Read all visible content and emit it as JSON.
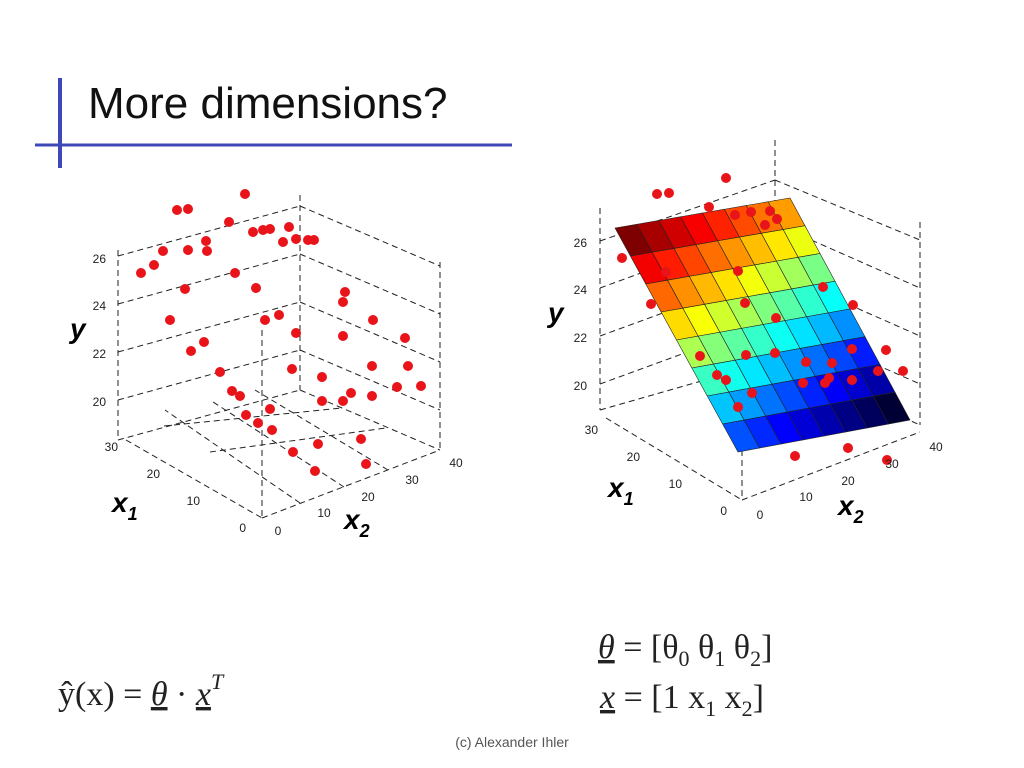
{
  "title": "More dimensions?",
  "plots": [
    {
      "yticks": [
        "20",
        "22",
        "24",
        "26"
      ],
      "x1ticks": [
        "0",
        "10",
        "20",
        "30"
      ],
      "x2ticks": [
        "0",
        "10",
        "20",
        "30",
        "40"
      ],
      "ylabel": "y",
      "x1label": [
        "x",
        "1"
      ],
      "x2label": [
        "x",
        "2"
      ]
    },
    {
      "yticks": [
        "20",
        "22",
        "24",
        "26"
      ],
      "x1ticks": [
        "0",
        "10",
        "20",
        "30"
      ],
      "x2ticks": [
        "0",
        "10",
        "20",
        "30",
        "40"
      ],
      "ylabel": "y",
      "x1label": [
        "x",
        "1"
      ],
      "x2label": [
        "x",
        "2"
      ]
    }
  ],
  "formulas": {
    "prediction": [
      "ŷ(x) = ",
      "θ",
      " · ",
      "x",
      "T"
    ],
    "theta": [
      "θ",
      " = [θ",
      "0",
      " θ",
      "1",
      " θ",
      "2",
      "]"
    ],
    "x": [
      "x",
      " = [1 x",
      "1",
      " x",
      "2",
      "]"
    ]
  },
  "footer": "(c) Alexander Ihler"
}
